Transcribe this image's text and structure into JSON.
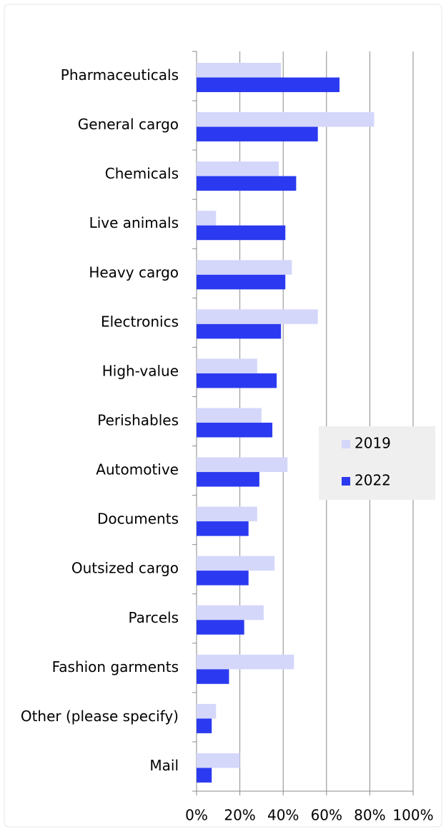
{
  "chart_data": {
    "type": "bar",
    "orientation": "horizontal",
    "categories": [
      "Pharmaceuticals",
      "General cargo",
      "Chemicals",
      "Live animals",
      "Heavy cargo",
      "Electronics",
      "High-value",
      "Perishables",
      "Automotive",
      "Documents",
      "Outsized cargo",
      "Parcels",
      "Fashion garments",
      "Other (please specify)",
      "Mail"
    ],
    "series": [
      {
        "name": "2019",
        "color": "#d4d7fa",
        "values": [
          39,
          82,
          38,
          9,
          44,
          56,
          28,
          30,
          42,
          28,
          36,
          31,
          45,
          9,
          20
        ]
      },
      {
        "name": "2022",
        "color": "#2b3af0",
        "values": [
          66,
          56,
          46,
          41,
          41,
          39,
          37,
          35,
          29,
          24,
          24,
          22,
          15,
          7,
          7
        ]
      }
    ],
    "xlim": [
      0,
      100
    ],
    "xticks": [
      {
        "value": 0,
        "label": "0%"
      },
      {
        "value": 20,
        "label": "20%"
      },
      {
        "value": 40,
        "label": "40%"
      },
      {
        "value": 60,
        "label": "60%"
      },
      {
        "value": 80,
        "label": "80%"
      },
      {
        "value": 100,
        "label": "100%"
      }
    ],
    "grid": true,
    "legend": "right"
  }
}
